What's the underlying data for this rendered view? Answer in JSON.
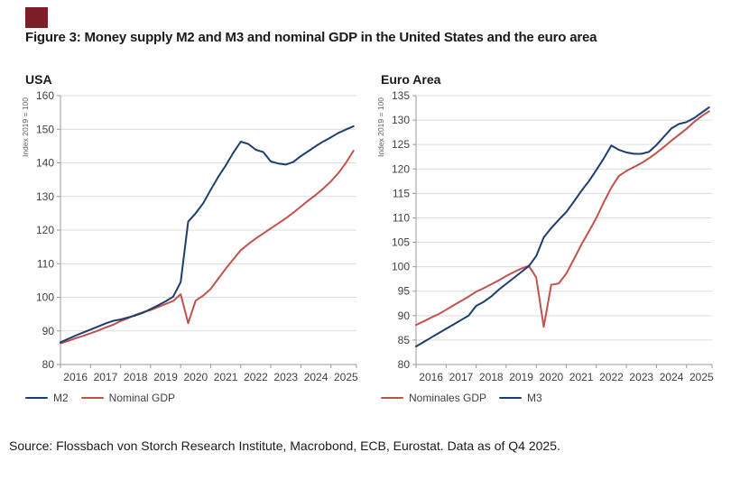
{
  "brand": {
    "logo_color": "#7C1E27"
  },
  "title": "Figure 3: Money supply M2 and M3 and nominal GDP in the United States and the euro area",
  "source": "Source: Flossbach von Storch Research Institute, Macrobond, ECB, Eurostat. Data as of Q4 2025.",
  "colors": {
    "navy": "#1F3C6E",
    "red": "#C1514D"
  },
  "chart_data": [
    {
      "type": "line",
      "title": "USA",
      "ylabel": "Index 2019 = 100",
      "ylim": [
        80,
        160
      ],
      "ytick_step": 10,
      "x_labels": [
        "2016",
        "2017",
        "2018",
        "2019",
        "2020",
        "2021",
        "2022",
        "2023",
        "2024",
        "2025"
      ],
      "x_range": [
        2016,
        2025.85
      ],
      "quarters_start": 2016,
      "grid": true,
      "legend_position": "bottom-left",
      "series": [
        {
          "name": "M2",
          "color_key": "navy",
          "values": [
            86.6,
            87.6,
            88.6,
            89.5,
            90.4,
            91.3,
            92.2,
            93.0,
            93.4,
            94.0,
            94.6,
            95.4,
            96.5,
            97.6,
            98.8,
            100.2,
            104.5,
            122.5,
            125.0,
            128.0,
            132.0,
            135.8,
            139.2,
            143.0,
            146.3,
            145.6,
            143.9,
            143.2,
            140.4,
            139.8,
            139.5,
            140.3,
            142.0,
            143.5,
            145.0,
            146.4,
            147.6,
            148.9,
            149.9,
            150.9
          ]
        },
        {
          "name": "Nominal GDP",
          "color_key": "red",
          "values": [
            86.3,
            87.0,
            87.8,
            88.5,
            89.3,
            90.1,
            91.0,
            91.8,
            92.9,
            93.8,
            94.8,
            95.6,
            96.2,
            97.1,
            98.0,
            98.9,
            100.9,
            92.3,
            99.0,
            100.5,
            102.5,
            105.5,
            108.5,
            111.3,
            114.0,
            115.8,
            117.5,
            119.0,
            120.5,
            122.0,
            123.5,
            125.2,
            127.0,
            128.8,
            130.5,
            132.4,
            134.5,
            137.0,
            140.0,
            143.6
          ]
        }
      ]
    },
    {
      "type": "line",
      "title": "Euro Area",
      "ylabel": "Index 2019 = 100",
      "ylim": [
        80,
        135
      ],
      "ytick_step": 5,
      "x_labels": [
        "2016",
        "2017",
        "2018",
        "2019",
        "2020",
        "2021",
        "2022",
        "2023",
        "2024",
        "2025"
      ],
      "x_range": [
        2016,
        2025.85
      ],
      "quarters_start": 2016,
      "grid": true,
      "legend_position": "bottom-left",
      "series": [
        {
          "name": "Nominales GDP",
          "color_key": "red",
          "values": [
            88.1,
            88.8,
            89.6,
            90.3,
            91.2,
            92.1,
            93.0,
            93.9,
            94.9,
            95.6,
            96.4,
            97.2,
            98.1,
            98.9,
            99.6,
            100.2,
            97.8,
            87.7,
            96.3,
            96.6,
            98.6,
            101.5,
            104.5,
            107.2,
            110.0,
            113.2,
            116.2,
            118.6,
            119.6,
            120.4,
            121.2,
            122.2,
            123.3,
            124.5,
            125.8,
            127.0,
            128.2,
            129.6,
            130.8,
            131.8
          ]
        },
        {
          "name": "M3",
          "color_key": "navy",
          "values": [
            83.7,
            84.6,
            85.5,
            86.4,
            87.3,
            88.2,
            89.1,
            90.0,
            92.0,
            92.8,
            93.9,
            95.3,
            96.5,
            97.7,
            98.9,
            100.1,
            102.2,
            106.0,
            107.9,
            109.6,
            111.2,
            113.3,
            115.5,
            117.5,
            119.8,
            122.2,
            124.8,
            123.9,
            123.4,
            123.1,
            123.1,
            123.5,
            124.9,
            126.6,
            128.3,
            129.2,
            129.6,
            130.4,
            131.5,
            132.6
          ]
        }
      ]
    }
  ]
}
